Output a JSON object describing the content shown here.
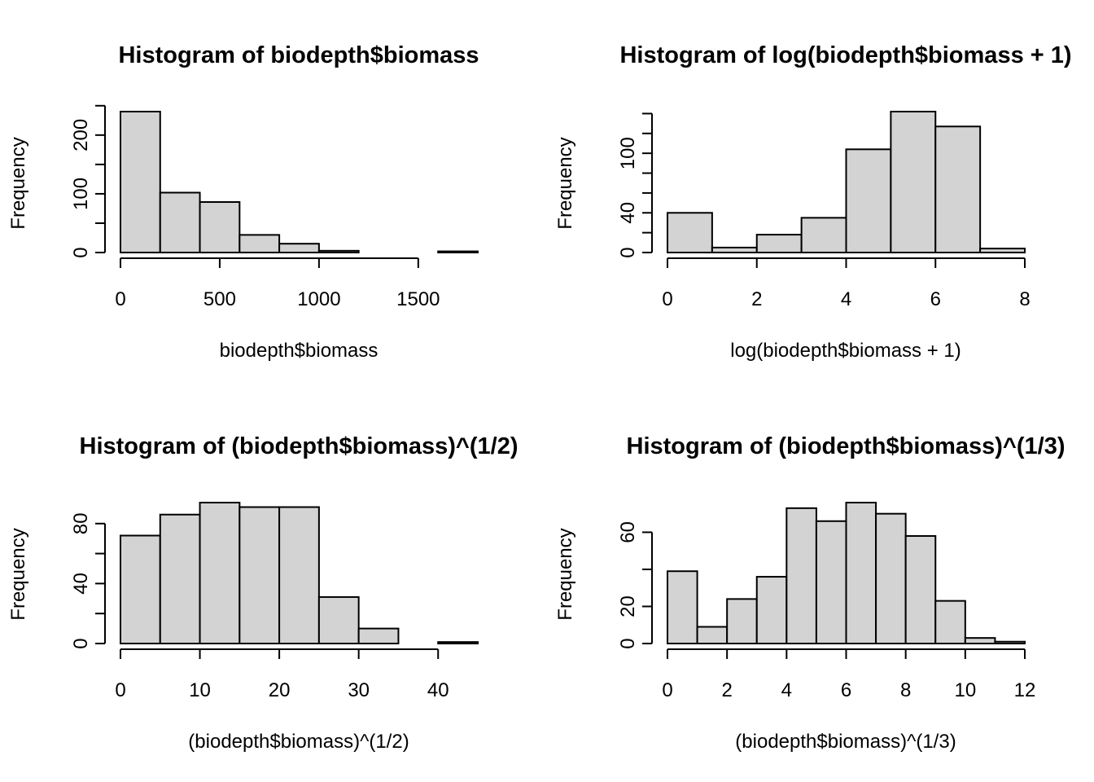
{
  "chart_data": [
    {
      "type": "bar",
      "title": "Histogram of biodepth$biomass",
      "xlabel": "biodepth$biomass",
      "ylabel": "Frequency",
      "breaks": [
        0,
        200,
        400,
        600,
        800,
        1000,
        1200,
        1400,
        1600,
        1800
      ],
      "values": [
        240,
        102,
        86,
        30,
        15,
        3,
        0,
        0,
        2
      ],
      "xlim": [
        0,
        1800
      ],
      "ylim": [
        0,
        240
      ],
      "xticks": [
        0,
        500,
        1000,
        1500
      ],
      "xtick_labels": [
        "0",
        "500",
        "1000",
        "1500"
      ],
      "yticks": [
        0,
        50,
        100,
        150,
        200,
        250
      ],
      "ytick_labels": [
        "0",
        "",
        "100",
        "",
        "200",
        ""
      ]
    },
    {
      "type": "bar",
      "title": "Histogram of log(biodepth$biomass + 1)",
      "xlabel": "log(biodepth$biomass + 1)",
      "ylabel": "Frequency",
      "breaks": [
        0,
        1,
        2,
        3,
        4,
        5,
        6,
        7,
        8
      ],
      "values": [
        40,
        5,
        18,
        35,
        104,
        142,
        127,
        4
      ],
      "xlim": [
        0,
        8
      ],
      "ylim": [
        0,
        142
      ],
      "xticks": [
        0,
        2,
        4,
        6,
        8
      ],
      "xtick_labels": [
        "0",
        "2",
        "4",
        "6",
        "8"
      ],
      "yticks": [
        0,
        20,
        40,
        60,
        80,
        100,
        120,
        140
      ],
      "ytick_labels": [
        "0",
        "",
        "40",
        "",
        "",
        "100",
        "",
        ""
      ]
    },
    {
      "type": "bar",
      "title": "Histogram of (biodepth$biomass)^(1/2)",
      "xlabel": "(biodepth$biomass)^(1/2)",
      "ylabel": "Frequency",
      "breaks": [
        0,
        5,
        10,
        15,
        20,
        25,
        30,
        35,
        40,
        45
      ],
      "values": [
        72,
        86,
        94,
        91,
        91,
        31,
        10,
        0,
        1
      ],
      "xlim": [
        0,
        45
      ],
      "ylim": [
        0,
        94
      ],
      "xticks": [
        0,
        10,
        20,
        30,
        40
      ],
      "xtick_labels": [
        "0",
        "10",
        "20",
        "30",
        "40"
      ],
      "yticks": [
        0,
        20,
        40,
        60,
        80
      ],
      "ytick_labels": [
        "0",
        "",
        "40",
        "",
        "80"
      ]
    },
    {
      "type": "bar",
      "title": "Histogram of (biodepth$biomass)^(1/3)",
      "xlabel": "(biodepth$biomass)^(1/3)",
      "ylabel": "Frequency",
      "breaks": [
        0,
        1,
        2,
        3,
        4,
        5,
        6,
        7,
        8,
        9,
        10,
        11,
        12
      ],
      "values": [
        39,
        9,
        24,
        36,
        73,
        66,
        76,
        70,
        58,
        23,
        3,
        1
      ],
      "xlim": [
        0,
        12
      ],
      "ylim": [
        0,
        76
      ],
      "xticks": [
        0,
        2,
        4,
        6,
        8,
        10,
        12
      ],
      "xtick_labels": [
        "0",
        "2",
        "4",
        "6",
        "8",
        "10",
        "12"
      ],
      "yticks": [
        0,
        20,
        40,
        60
      ],
      "ytick_labels": [
        "0",
        "20",
        "",
        "60"
      ]
    }
  ]
}
